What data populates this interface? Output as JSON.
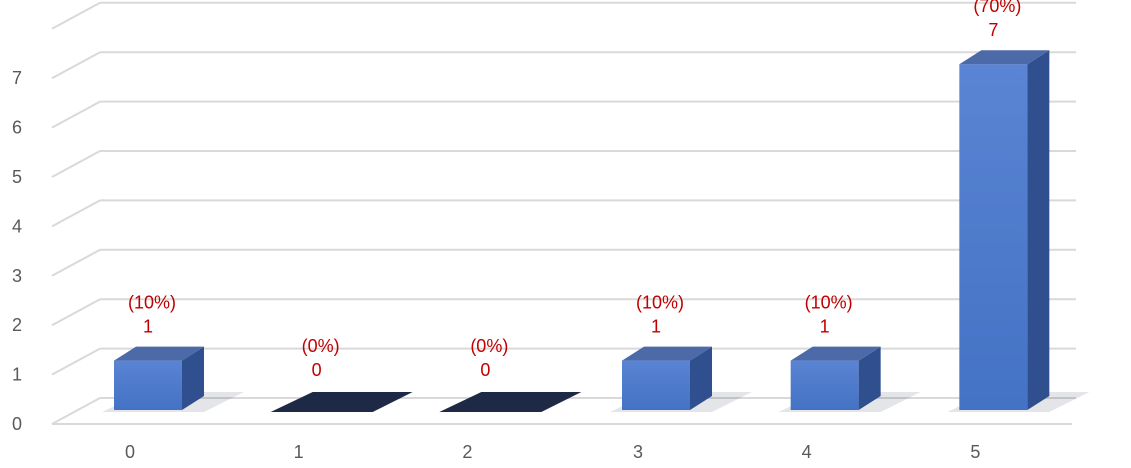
{
  "chart_data": {
    "type": "bar",
    "style": "3d-column",
    "categories": [
      "0",
      "1",
      "2",
      "3",
      "4",
      "5"
    ],
    "values": [
      1,
      0,
      0,
      1,
      1,
      7
    ],
    "percent_labels": [
      "(10%)",
      "(0%)",
      "(0%)",
      "(10%)",
      "(10%)",
      "(70%)"
    ],
    "value_labels": [
      "1",
      "0",
      "0",
      "1",
      "1",
      "7"
    ],
    "y_ticks": [
      "0",
      "1",
      "2",
      "3",
      "4",
      "5",
      "6",
      "7"
    ],
    "ylim": [
      0,
      8
    ],
    "title": "",
    "xlabel": "",
    "ylabel": "",
    "grid": true,
    "legend": "none",
    "colors": {
      "bar_front": "#4472c4",
      "bar_side": "#2f4f8f",
      "bar_top": "#5b80c8",
      "data_label": "#c00000",
      "gridline": "#d9d9d9",
      "tick_text": "#595959"
    }
  }
}
